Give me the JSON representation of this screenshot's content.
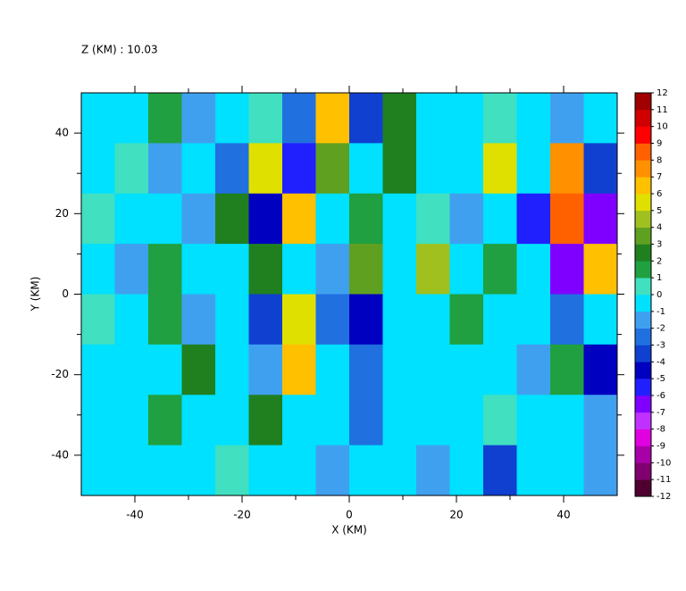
{
  "chart_data": {
    "type": "heatmap",
    "title": "Z (KM) : 10.03",
    "xlabel": "X (KM)",
    "ylabel": "Y (KM)",
    "xlim": [
      -50,
      50
    ],
    "ylim": [
      -50,
      50
    ],
    "xticks": [
      -40,
      -20,
      0,
      20,
      40
    ],
    "yticks": [
      -40,
      -20,
      0,
      20,
      40
    ],
    "xticks_minor": [
      -30,
      -10,
      10,
      30
    ],
    "yticks_minor": [
      -30,
      -10,
      10,
      30
    ],
    "x": [
      -46.875,
      -40.625,
      -34.375,
      -28.125,
      -21.875,
      -15.625,
      -9.375,
      -3.125,
      3.125,
      9.375,
      15.625,
      21.875,
      28.125,
      34.375,
      40.625,
      46.875
    ],
    "y": [
      43.75,
      31.25,
      18.75,
      6.25,
      -6.25,
      -18.75,
      -31.25,
      -43.75
    ],
    "z": [
      [
        -1,
        -0.5,
        1,
        -2,
        -1,
        0,
        -3,
        6,
        -4,
        2,
        -0.5,
        -1,
        0.5,
        -1,
        -2,
        -0.5
      ],
      [
        -1,
        0.5,
        -2,
        -0.5,
        -3,
        5,
        -6,
        3,
        -0.5,
        2,
        -1,
        -0.5,
        5,
        -1,
        7,
        -4
      ],
      [
        0.5,
        -1,
        -0.5,
        -2,
        2,
        -5,
        6,
        -1,
        1,
        -0.5,
        0.5,
        -2,
        -0.5,
        -6,
        8,
        -7
      ],
      [
        -0.5,
        -2,
        1,
        -1,
        -0.5,
        2,
        -1,
        -2,
        3,
        -1,
        4,
        -0.5,
        1,
        -0.5,
        -7,
        6
      ],
      [
        0.5,
        -1,
        1,
        -2,
        -0.5,
        -4,
        5,
        -3,
        -5,
        -1,
        -0.5,
        1,
        -1,
        -0.5,
        -3,
        -1
      ],
      [
        -1,
        -0.5,
        -1,
        2,
        -1,
        -2,
        6,
        -1,
        -3,
        -0.5,
        -1,
        -0.5,
        -1,
        -2,
        1,
        -5
      ],
      [
        -1,
        -0.5,
        1,
        -1,
        -0.5,
        2,
        -1,
        -0.5,
        -3,
        -1,
        -0.5,
        -1,
        0.5,
        -1,
        -0.5,
        -2
      ],
      [
        -1,
        -0.5,
        -1,
        -0.5,
        0.5,
        -1,
        -0.5,
        -2,
        -0.5,
        -1,
        -2,
        -0.5,
        -4,
        -1,
        -0.5,
        -2
      ]
    ],
    "colorbar": {
      "levels": [
        -12,
        -11,
        -10,
        -9,
        -8,
        -7,
        -6,
        -5,
        -4,
        -3,
        -2,
        -1,
        0,
        1,
        2,
        3,
        4,
        5,
        6,
        7,
        8,
        9,
        10,
        11,
        12
      ],
      "colors": [
        "#500030",
        "#800070",
        "#a800a8",
        "#e000e0",
        "#c030ff",
        "#8000ff",
        "#2020ff",
        "#0000c0",
        "#1040d0",
        "#2070e0",
        "#40a0f0",
        "#00e0ff",
        "#40e0c0",
        "#20a040",
        "#208020",
        "#60a020",
        "#a0c020",
        "#e0e000",
        "#ffc000",
        "#ff9000",
        "#ff6000",
        "#ff0000",
        "#d00000",
        "#a00000"
      ]
    }
  }
}
